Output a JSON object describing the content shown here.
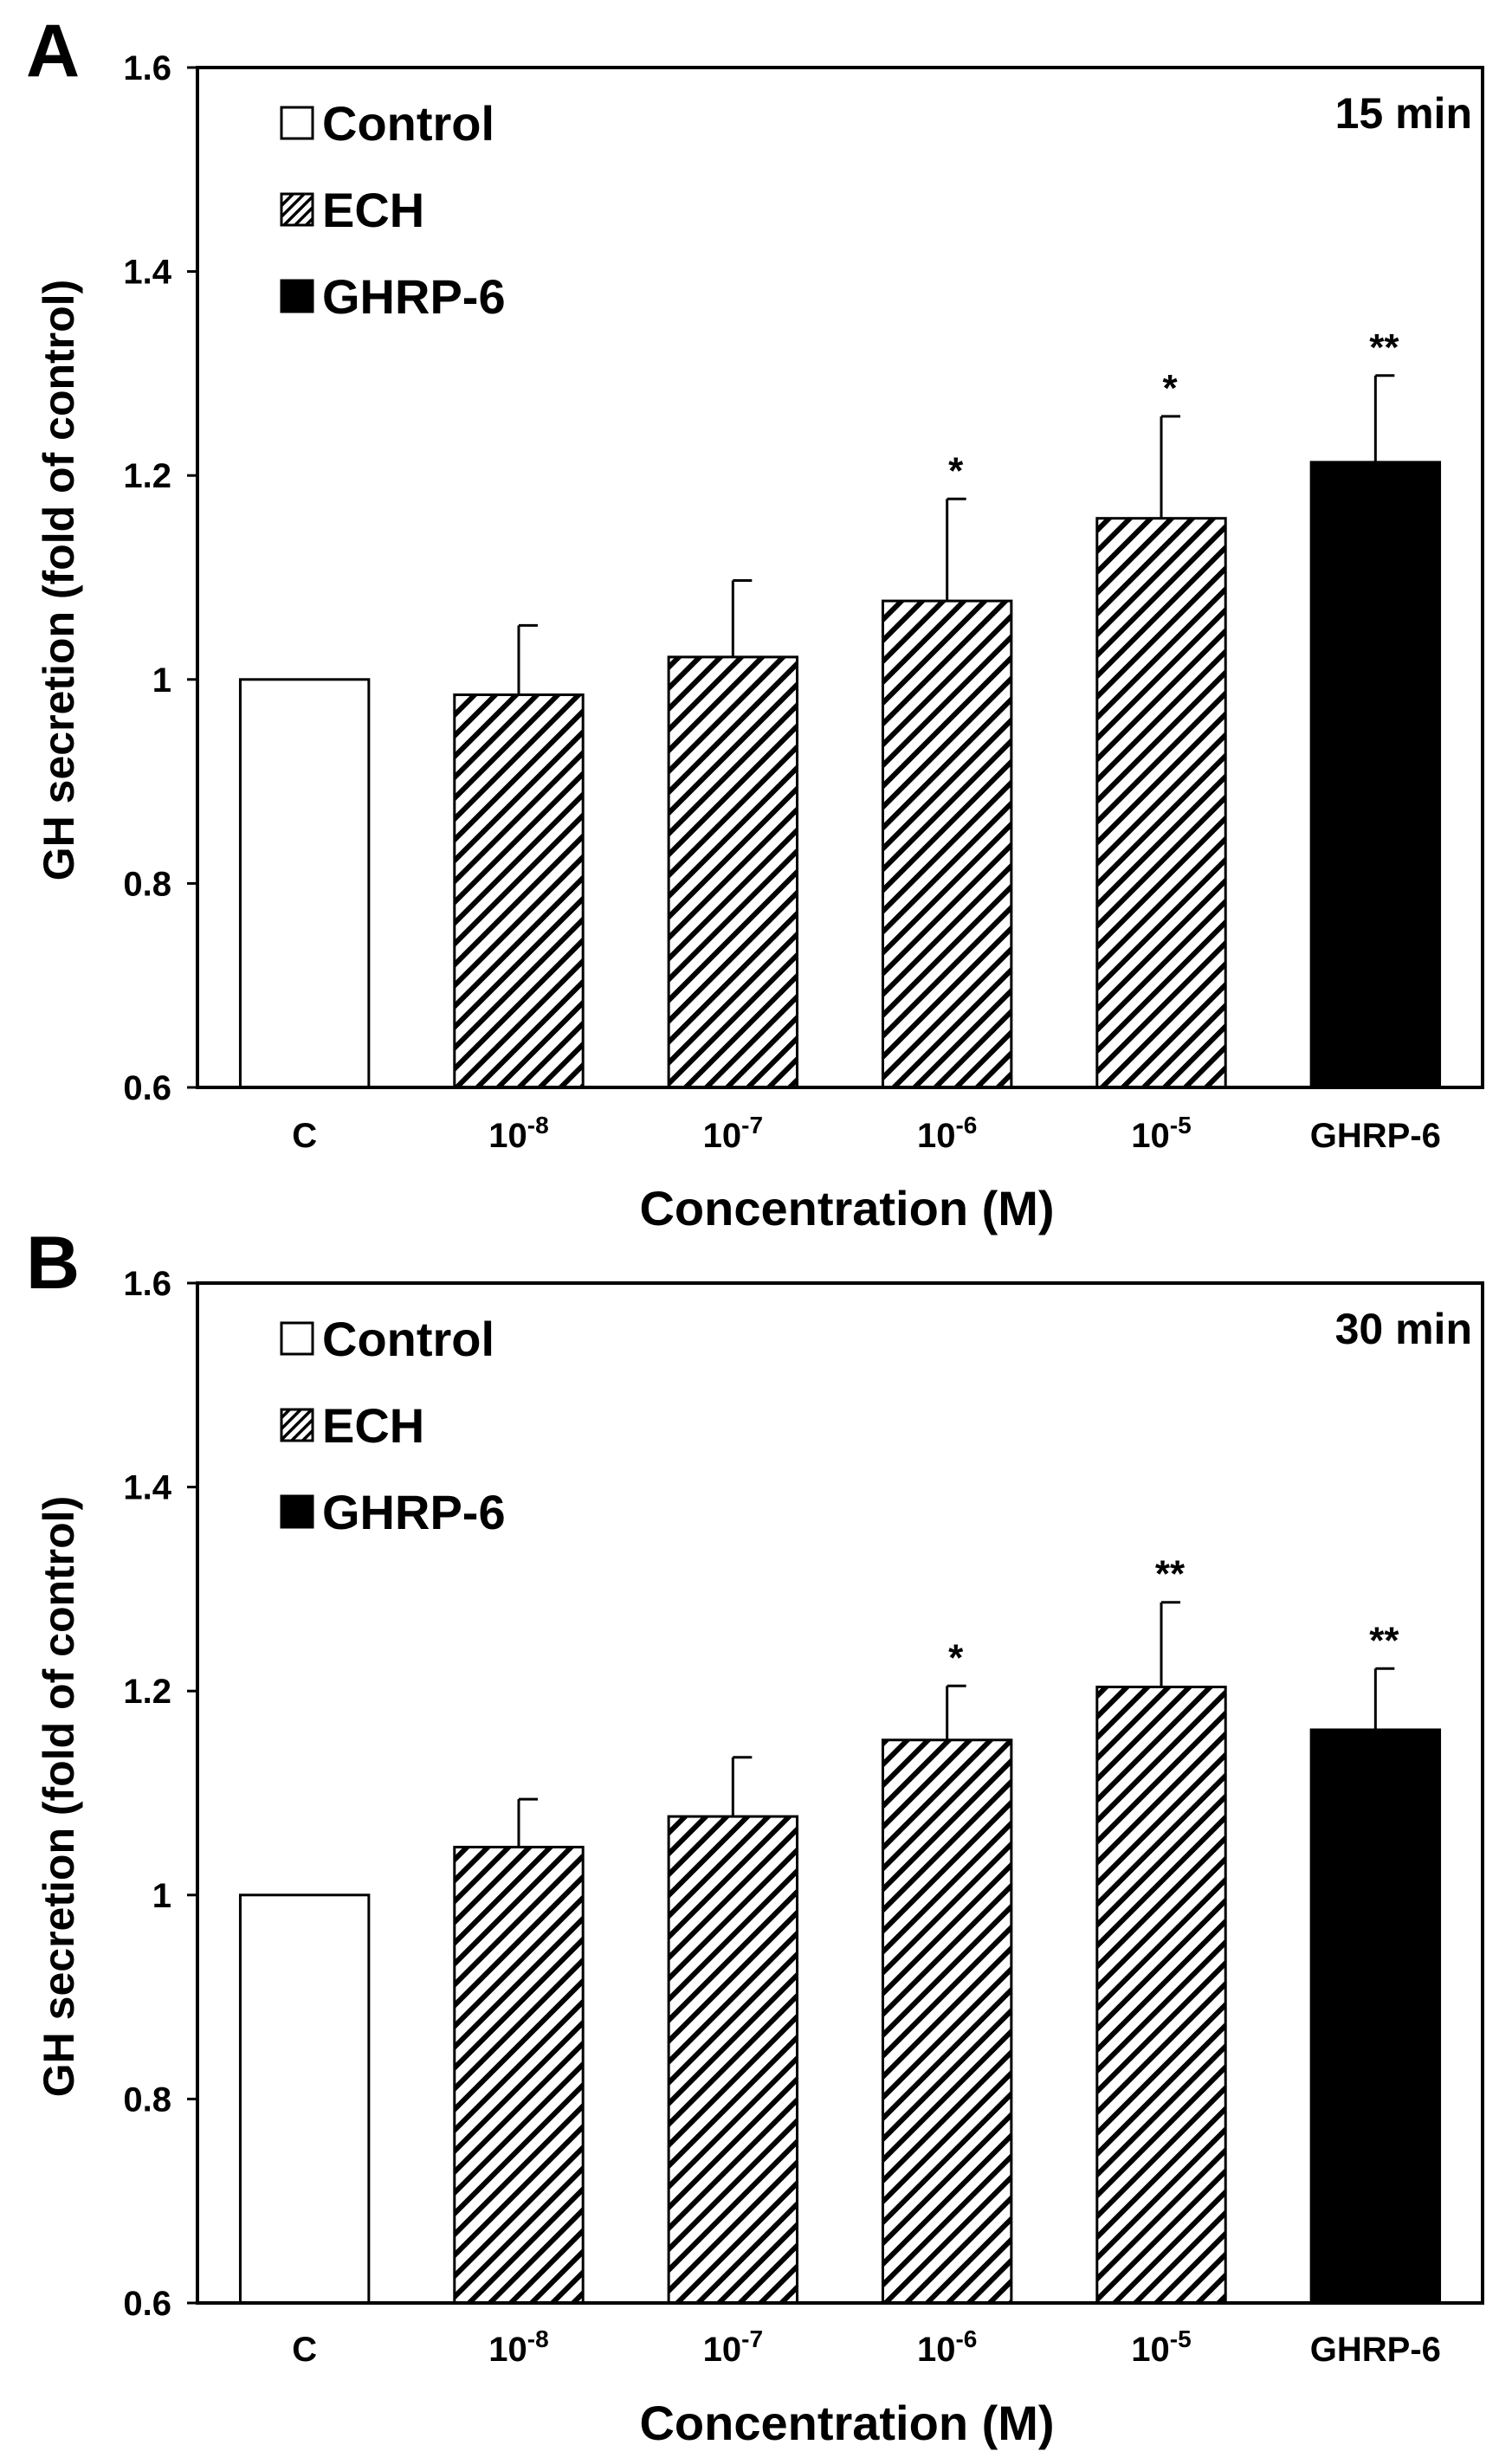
{
  "chart_data": [
    {
      "type": "bar",
      "panel_label": "A",
      "time_label": "15 min",
      "xlabel": "Concentration  (M)",
      "ylabel": "GH secretion (fold  of control)",
      "ylim": [
        0.6,
        1.6
      ],
      "yticks": [
        "0.6",
        "0.8",
        "1",
        "1.2",
        "1.4",
        "1.6"
      ],
      "categories": [
        {
          "base": "C",
          "exp": ""
        },
        {
          "base": "10",
          "exp": "-8"
        },
        {
          "base": "10",
          "exp": "-7"
        },
        {
          "base": "10",
          "exp": "-6"
        },
        {
          "base": "10",
          "exp": "-5"
        },
        {
          "base": "GHRP-6",
          "exp": ""
        }
      ],
      "values": [
        1.0,
        0.985,
        1.022,
        1.077,
        1.158,
        1.213
      ],
      "errors": [
        0,
        0.068,
        0.075,
        0.1,
        0.1,
        0.085
      ],
      "groups": [
        "Control",
        "ECH",
        "ECH",
        "ECH",
        "ECH",
        "GHRP-6"
      ],
      "significance": [
        "",
        "",
        "",
        "*",
        "*",
        "**"
      ],
      "legend": [
        {
          "label": "Control",
          "style": "open"
        },
        {
          "label": "ECH",
          "style": "hatched"
        },
        {
          "label": "GHRP-6",
          "style": "solid"
        }
      ]
    },
    {
      "type": "bar",
      "panel_label": "B",
      "time_label": "30 min",
      "xlabel": "Concentration  (M)",
      "ylabel": "GH secretion (fold of control)",
      "ylim": [
        0.6,
        1.6
      ],
      "yticks": [
        "0.6",
        "0.8",
        "1",
        "1.2",
        "1.4",
        "1.6"
      ],
      "categories": [
        {
          "base": "C",
          "exp": ""
        },
        {
          "base": "10",
          "exp": "-8"
        },
        {
          "base": "10",
          "exp": "-7"
        },
        {
          "base": "10",
          "exp": "-6"
        },
        {
          "base": "10",
          "exp": "-5"
        },
        {
          "base": "GHRP-6",
          "exp": ""
        }
      ],
      "values": [
        1.0,
        1.047,
        1.077,
        1.152,
        1.204,
        1.162
      ],
      "errors": [
        0,
        0.047,
        0.058,
        0.053,
        0.083,
        0.06
      ],
      "groups": [
        "Control",
        "ECH",
        "ECH",
        "ECH",
        "ECH",
        "GHRP-6"
      ],
      "significance": [
        "",
        "",
        "",
        "*",
        "**",
        "**"
      ],
      "legend": [
        {
          "label": "Control",
          "style": "open"
        },
        {
          "label": "ECH",
          "style": "hatched"
        },
        {
          "label": "GHRP-6",
          "style": "solid"
        }
      ]
    }
  ]
}
